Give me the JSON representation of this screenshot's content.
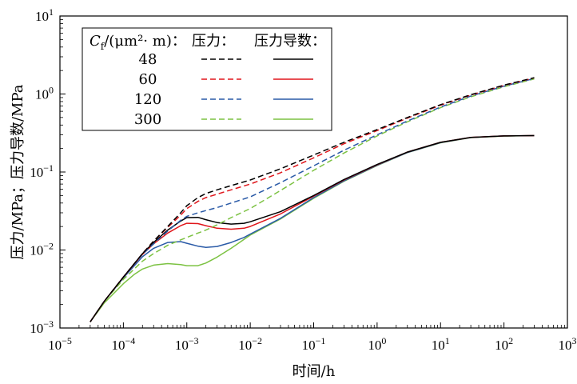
{
  "chart_data": {
    "type": "line",
    "xlabel": "时间/h",
    "ylabel": "压力/MPa；压力导数/MPa",
    "x_scale": "log",
    "y_scale": "log",
    "xlim": [
      1e-05,
      1000
    ],
    "ylim": [
      0.001,
      10
    ],
    "x_ticks": [
      "10−5",
      "10−4",
      "10−3",
      "10−2",
      "10−1",
      "100",
      "101",
      "102",
      "103"
    ],
    "y_ticks": [
      "10−3",
      "10−2",
      "10−1",
      "100",
      "101"
    ],
    "grid": false,
    "legend": {
      "placement": "top-left",
      "header": "Cf/(μm²· m)：",
      "col_pressure": "压力：",
      "col_derivative": "压力导数：",
      "entries": [
        "48",
        "60",
        "120",
        "300"
      ]
    },
    "series": [
      {
        "name": "48",
        "color": "#000000",
        "pressure": {
          "x": [
            3e-05,
            5e-05,
            0.0001,
            0.0002,
            0.0003,
            0.0005,
            0.0008,
            0.001,
            0.0015,
            0.002,
            0.003,
            0.005,
            0.01,
            0.03,
            0.1,
            0.3,
            1,
            3,
            10,
            30,
            100,
            300
          ],
          "y": [
            0.0012,
            0.0022,
            0.0045,
            0.009,
            0.013,
            0.02,
            0.03,
            0.037,
            0.047,
            0.053,
            0.059,
            0.067,
            0.079,
            0.11,
            0.165,
            0.24,
            0.35,
            0.5,
            0.73,
            0.98,
            1.3,
            1.62
          ]
        },
        "derivative": {
          "x": [
            3e-05,
            5e-05,
            0.0001,
            0.0002,
            0.0003,
            0.0005,
            0.0008,
            0.001,
            0.0015,
            0.002,
            0.003,
            0.005,
            0.008,
            0.01,
            0.03,
            0.1,
            0.3,
            1,
            3,
            10,
            30,
            100,
            300
          ],
          "y": [
            0.0012,
            0.0022,
            0.0045,
            0.009,
            0.0125,
            0.018,
            0.0235,
            0.026,
            0.0262,
            0.0245,
            0.0225,
            0.0215,
            0.022,
            0.023,
            0.031,
            0.05,
            0.08,
            0.125,
            0.18,
            0.24,
            0.278,
            0.29,
            0.293
          ]
        }
      },
      {
        "name": "60",
        "color": "#e0161b",
        "pressure": {
          "x": [
            3e-05,
            5e-05,
            0.0001,
            0.0002,
            0.0003,
            0.0005,
            0.0008,
            0.001,
            0.0015,
            0.002,
            0.003,
            0.005,
            0.01,
            0.03,
            0.1,
            0.3,
            1,
            3,
            10,
            30,
            100,
            300
          ],
          "y": [
            0.0012,
            0.0022,
            0.0045,
            0.009,
            0.013,
            0.0195,
            0.028,
            0.034,
            0.042,
            0.047,
            0.052,
            0.059,
            0.07,
            0.098,
            0.152,
            0.23,
            0.34,
            0.49,
            0.72,
            0.97,
            1.29,
            1.61
          ]
        },
        "derivative": {
          "x": [
            3e-05,
            5e-05,
            0.0001,
            0.0002,
            0.0003,
            0.0005,
            0.0008,
            0.001,
            0.0015,
            0.002,
            0.003,
            0.005,
            0.008,
            0.01,
            0.03,
            0.1,
            0.3,
            1,
            3,
            10,
            30,
            100,
            300
          ],
          "y": [
            0.0012,
            0.0022,
            0.0045,
            0.0088,
            0.012,
            0.0165,
            0.0205,
            0.022,
            0.0218,
            0.0205,
            0.019,
            0.0185,
            0.019,
            0.02,
            0.029,
            0.049,
            0.079,
            0.124,
            0.18,
            0.24,
            0.278,
            0.29,
            0.293
          ]
        }
      },
      {
        "name": "120",
        "color": "#2a5aa7",
        "pressure": {
          "x": [
            3e-05,
            5e-05,
            0.0001,
            0.0002,
            0.0003,
            0.0005,
            0.0008,
            0.001,
            0.0015,
            0.002,
            0.003,
            0.005,
            0.01,
            0.03,
            0.1,
            0.3,
            1,
            3,
            10,
            30,
            100,
            300
          ],
          "y": [
            0.0012,
            0.0022,
            0.0045,
            0.0088,
            0.012,
            0.0175,
            0.024,
            0.027,
            0.03,
            0.032,
            0.035,
            0.04,
            0.048,
            0.073,
            0.12,
            0.19,
            0.3,
            0.45,
            0.68,
            0.94,
            1.26,
            1.58
          ]
        },
        "derivative": {
          "x": [
            3e-05,
            5e-05,
            0.0001,
            0.0002,
            0.0003,
            0.0005,
            0.0008,
            0.001,
            0.0015,
            0.002,
            0.003,
            0.005,
            0.008,
            0.01,
            0.03,
            0.1,
            0.3,
            1,
            3,
            10,
            30,
            100,
            300
          ],
          "y": [
            0.0012,
            0.0022,
            0.0044,
            0.0082,
            0.0105,
            0.0125,
            0.0128,
            0.0122,
            0.0112,
            0.0108,
            0.0111,
            0.0125,
            0.0145,
            0.016,
            0.0255,
            0.047,
            0.077,
            0.122,
            0.178,
            0.238,
            0.277,
            0.29,
            0.293
          ]
        }
      },
      {
        "name": "300",
        "color": "#7cc242",
        "pressure": {
          "x": [
            3e-05,
            5e-05,
            0.0001,
            0.0002,
            0.0003,
            0.0005,
            0.0008,
            0.001,
            0.0015,
            0.002,
            0.003,
            0.005,
            0.01,
            0.03,
            0.1,
            0.3,
            1,
            3,
            10,
            30,
            100,
            300
          ],
          "y": [
            0.0012,
            0.0022,
            0.0042,
            0.0072,
            0.009,
            0.0115,
            0.0135,
            0.0145,
            0.0165,
            0.018,
            0.021,
            0.026,
            0.034,
            0.058,
            0.105,
            0.175,
            0.29,
            0.44,
            0.67,
            0.92,
            1.24,
            1.56
          ]
        },
        "derivative": {
          "x": [
            3e-05,
            5e-05,
            0.0001,
            0.00015,
            0.0002,
            0.0003,
            0.0005,
            0.0008,
            0.001,
            0.0015,
            0.002,
            0.003,
            0.005,
            0.01,
            0.03,
            0.1,
            0.3,
            1,
            3,
            10,
            30,
            100,
            300
          ],
          "y": [
            0.0012,
            0.0021,
            0.0037,
            0.0049,
            0.0057,
            0.0064,
            0.0067,
            0.0065,
            0.0063,
            0.0063,
            0.0068,
            0.0081,
            0.0105,
            0.0155,
            0.025,
            0.046,
            0.076,
            0.121,
            0.177,
            0.237,
            0.276,
            0.289,
            0.293
          ]
        }
      }
    ]
  }
}
